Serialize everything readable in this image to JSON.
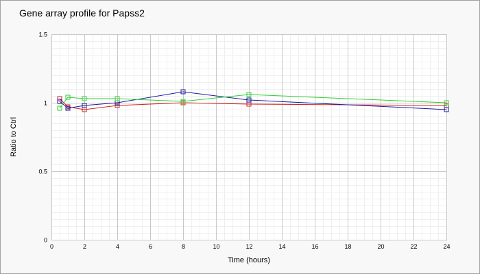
{
  "chart_data": {
    "type": "line",
    "title": "Gene array profile for Papss2",
    "xlabel": "Time (hours)",
    "ylabel": "Ratio to Ctrl",
    "xlim": [
      0,
      24
    ],
    "ylim": [
      0,
      1.5
    ],
    "x_ticks": [
      "0",
      "2",
      "4",
      "6",
      "8",
      "10",
      "12",
      "14",
      "16",
      "18",
      "20",
      "22",
      "24"
    ],
    "y_ticks": [
      "0",
      "0.5",
      "1",
      "1.5"
    ],
    "grid": true,
    "legend": "none",
    "series": [
      {
        "color": "#d42020",
        "x": [
          0.5,
          1,
          2,
          4,
          8,
          12,
          24
        ],
        "y": [
          1.03,
          0.97,
          0.95,
          0.98,
          1.0,
          0.99,
          0.98
        ]
      },
      {
        "color": "#1a1aa0",
        "x": [
          0.5,
          1,
          2,
          4,
          8,
          12,
          24
        ],
        "y": [
          1.01,
          0.96,
          0.98,
          1.0,
          1.08,
          1.02,
          0.95
        ]
      },
      {
        "color": "#30d030",
        "x": [
          0.5,
          1,
          2,
          4,
          8,
          12,
          24
        ],
        "y": [
          0.96,
          1.04,
          1.03,
          1.03,
          1.01,
          1.06,
          1.0
        ]
      }
    ]
  }
}
